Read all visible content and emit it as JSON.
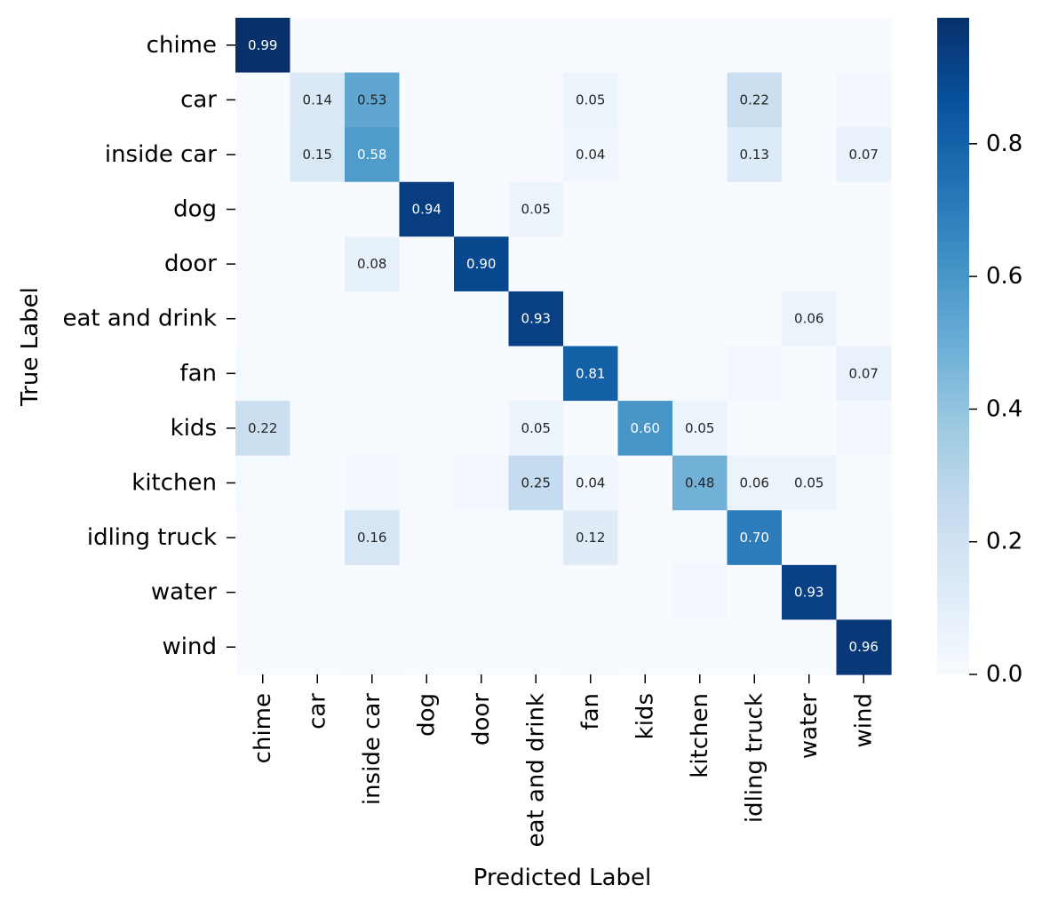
{
  "chart_data": {
    "type": "heatmap",
    "title": "",
    "xlabel": "Predicted Label",
    "ylabel": "True Label",
    "x_categories": [
      "chime",
      "car",
      "inside car",
      "dog",
      "door",
      "eat and drink",
      "fan",
      "kids",
      "kitchen",
      "idling truck",
      "water",
      "wind"
    ],
    "y_categories": [
      "chime",
      "car",
      "inside car",
      "dog",
      "door",
      "eat and drink",
      "fan",
      "kids",
      "kitchen",
      "idling truck",
      "water",
      "wind"
    ],
    "values": [
      [
        0.99,
        0,
        0,
        0,
        0,
        0,
        0,
        0,
        0,
        0,
        0,
        0
      ],
      [
        0,
        0.14,
        0.53,
        0,
        0,
        0,
        0.05,
        0,
        0,
        0.22,
        0,
        0.02
      ],
      [
        0,
        0.15,
        0.58,
        0,
        0.01,
        0,
        0.04,
        0,
        0,
        0.13,
        0,
        0.07
      ],
      [
        0,
        0,
        0,
        0.94,
        0,
        0.05,
        0,
        0,
        0,
        0,
        0,
        0
      ],
      [
        0,
        0,
        0.08,
        0,
        0.9,
        0,
        0,
        0,
        0.01,
        0,
        0,
        0
      ],
      [
        0,
        0,
        0,
        0,
        0,
        0.93,
        0,
        0,
        0,
        0,
        0.06,
        0
      ],
      [
        0.01,
        0,
        0.01,
        0,
        0.01,
        0,
        0.81,
        0,
        0.01,
        0.02,
        0,
        0.07
      ],
      [
        0.22,
        0,
        0.01,
        0,
        0,
        0.05,
        0,
        0.6,
        0.05,
        0,
        0,
        0.02
      ],
      [
        0.01,
        0,
        0.02,
        0.01,
        0.02,
        0.25,
        0.04,
        0,
        0.48,
        0.06,
        0.05,
        0
      ],
      [
        0,
        0,
        0.16,
        0,
        0,
        0,
        0.12,
        0,
        0.01,
        0.7,
        0,
        0.01
      ],
      [
        0,
        0,
        0,
        0,
        0,
        0.01,
        0,
        0,
        0.02,
        0,
        0.93,
        0.01
      ],
      [
        0,
        0,
        0.01,
        0,
        0,
        0,
        0.01,
        0,
        0,
        0,
        0,
        0.96
      ]
    ],
    "annotation_threshold": 0.04,
    "colormap": "Blues",
    "colorscale_stops": [
      "#f7fbff",
      "#deebf7",
      "#c6dbef",
      "#9ecae1",
      "#6baed6",
      "#4292c6",
      "#2171b5",
      "#08519c",
      "#08306b"
    ],
    "vmin": 0,
    "vmax": 0.99,
    "colorbar_ticks": [
      0.0,
      0.2,
      0.4,
      0.6,
      0.8
    ],
    "colorbar_tick_labels": [
      "0.0",
      "0.2",
      "0.4",
      "0.6",
      "0.8"
    ],
    "grid": false,
    "legend": "colorbar-right"
  }
}
